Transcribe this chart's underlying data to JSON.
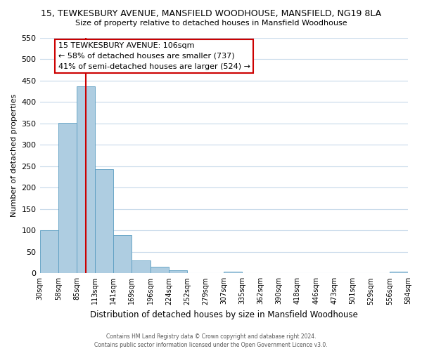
{
  "title": "15, TEWKESBURY AVENUE, MANSFIELD WOODHOUSE, MANSFIELD, NG19 8LA",
  "subtitle": "Size of property relative to detached houses in Mansfield Woodhouse",
  "xlabel": "Distribution of detached houses by size in Mansfield Woodhouse",
  "ylabel": "Number of detached properties",
  "bar_values": [
    101,
    352,
    437,
    243,
    89,
    30,
    15,
    7,
    0,
    0,
    3,
    0,
    0,
    0,
    0,
    0,
    0,
    0,
    0,
    4
  ],
  "bar_labels": [
    "30sqm",
    "58sqm",
    "85sqm",
    "113sqm",
    "141sqm",
    "169sqm",
    "196sqm",
    "224sqm",
    "252sqm",
    "279sqm",
    "307sqm",
    "335sqm",
    "362sqm",
    "390sqm",
    "418sqm",
    "446sqm",
    "473sqm",
    "501sqm",
    "529sqm",
    "556sqm",
    "584sqm"
  ],
  "ylim": [
    0,
    550
  ],
  "yticks": [
    0,
    50,
    100,
    150,
    200,
    250,
    300,
    350,
    400,
    450,
    500,
    550
  ],
  "bar_color": "#aecde1",
  "bar_edge_color": "#5a9dc1",
  "property_line_x": 2.5,
  "property_line_color": "#cc0000",
  "annotation_title": "15 TEWKESBURY AVENUE: 106sqm",
  "annotation_line1": "← 58% of detached houses are smaller (737)",
  "annotation_line2": "41% of semi-detached houses are larger (524) →",
  "annotation_box_color": "#ffffff",
  "annotation_box_edge": "#cc0000",
  "footer1": "Contains HM Land Registry data © Crown copyright and database right 2024.",
  "footer2": "Contains public sector information licensed under the Open Government Licence v3.0.",
  "bg_color": "#ffffff",
  "grid_color": "#c8daea"
}
